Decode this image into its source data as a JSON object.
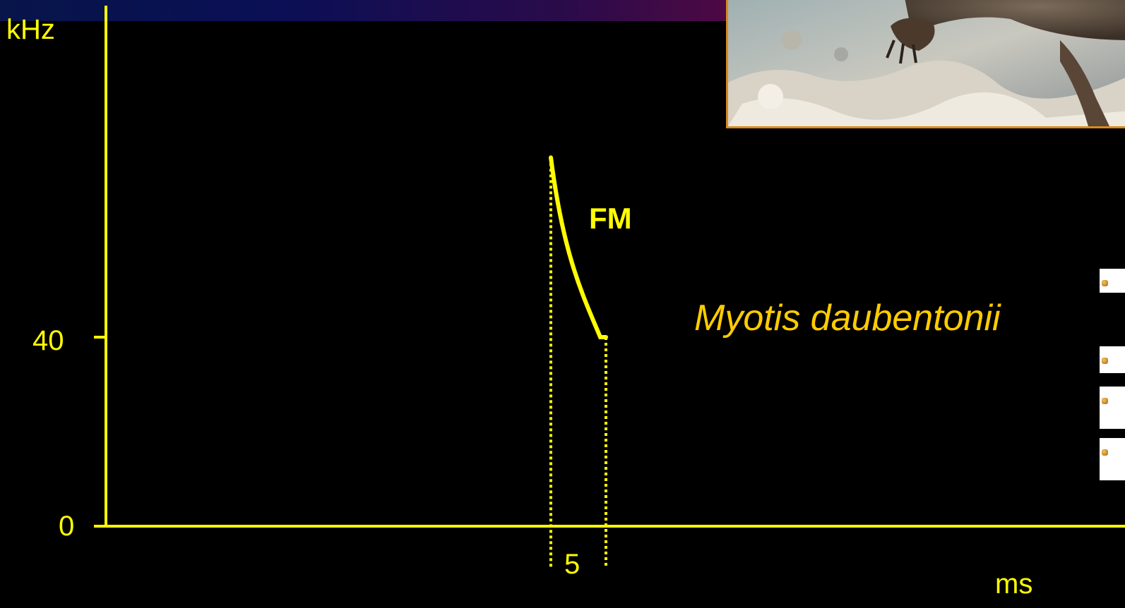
{
  "slide": {
    "species_name": "Myotis daubentonii",
    "photo_description": "bat-photo"
  },
  "chart_data": {
    "type": "line",
    "y_unit": "kHz",
    "x_unit": "ms",
    "y_ticks": [
      "40",
      "0"
    ],
    "x_ticks": [
      "5"
    ],
    "annotation": "FM",
    "series": [
      {
        "points_ms_khz": [
          [
            0,
            78
          ],
          [
            1,
            66
          ],
          [
            2,
            55
          ],
          [
            3,
            47
          ],
          [
            4,
            41.5
          ],
          [
            5,
            40
          ]
        ]
      }
    ],
    "call_start_ms": 0,
    "call_end_ms": 5,
    "axis_color": "#ffff00",
    "line_color": "#ffff00"
  }
}
